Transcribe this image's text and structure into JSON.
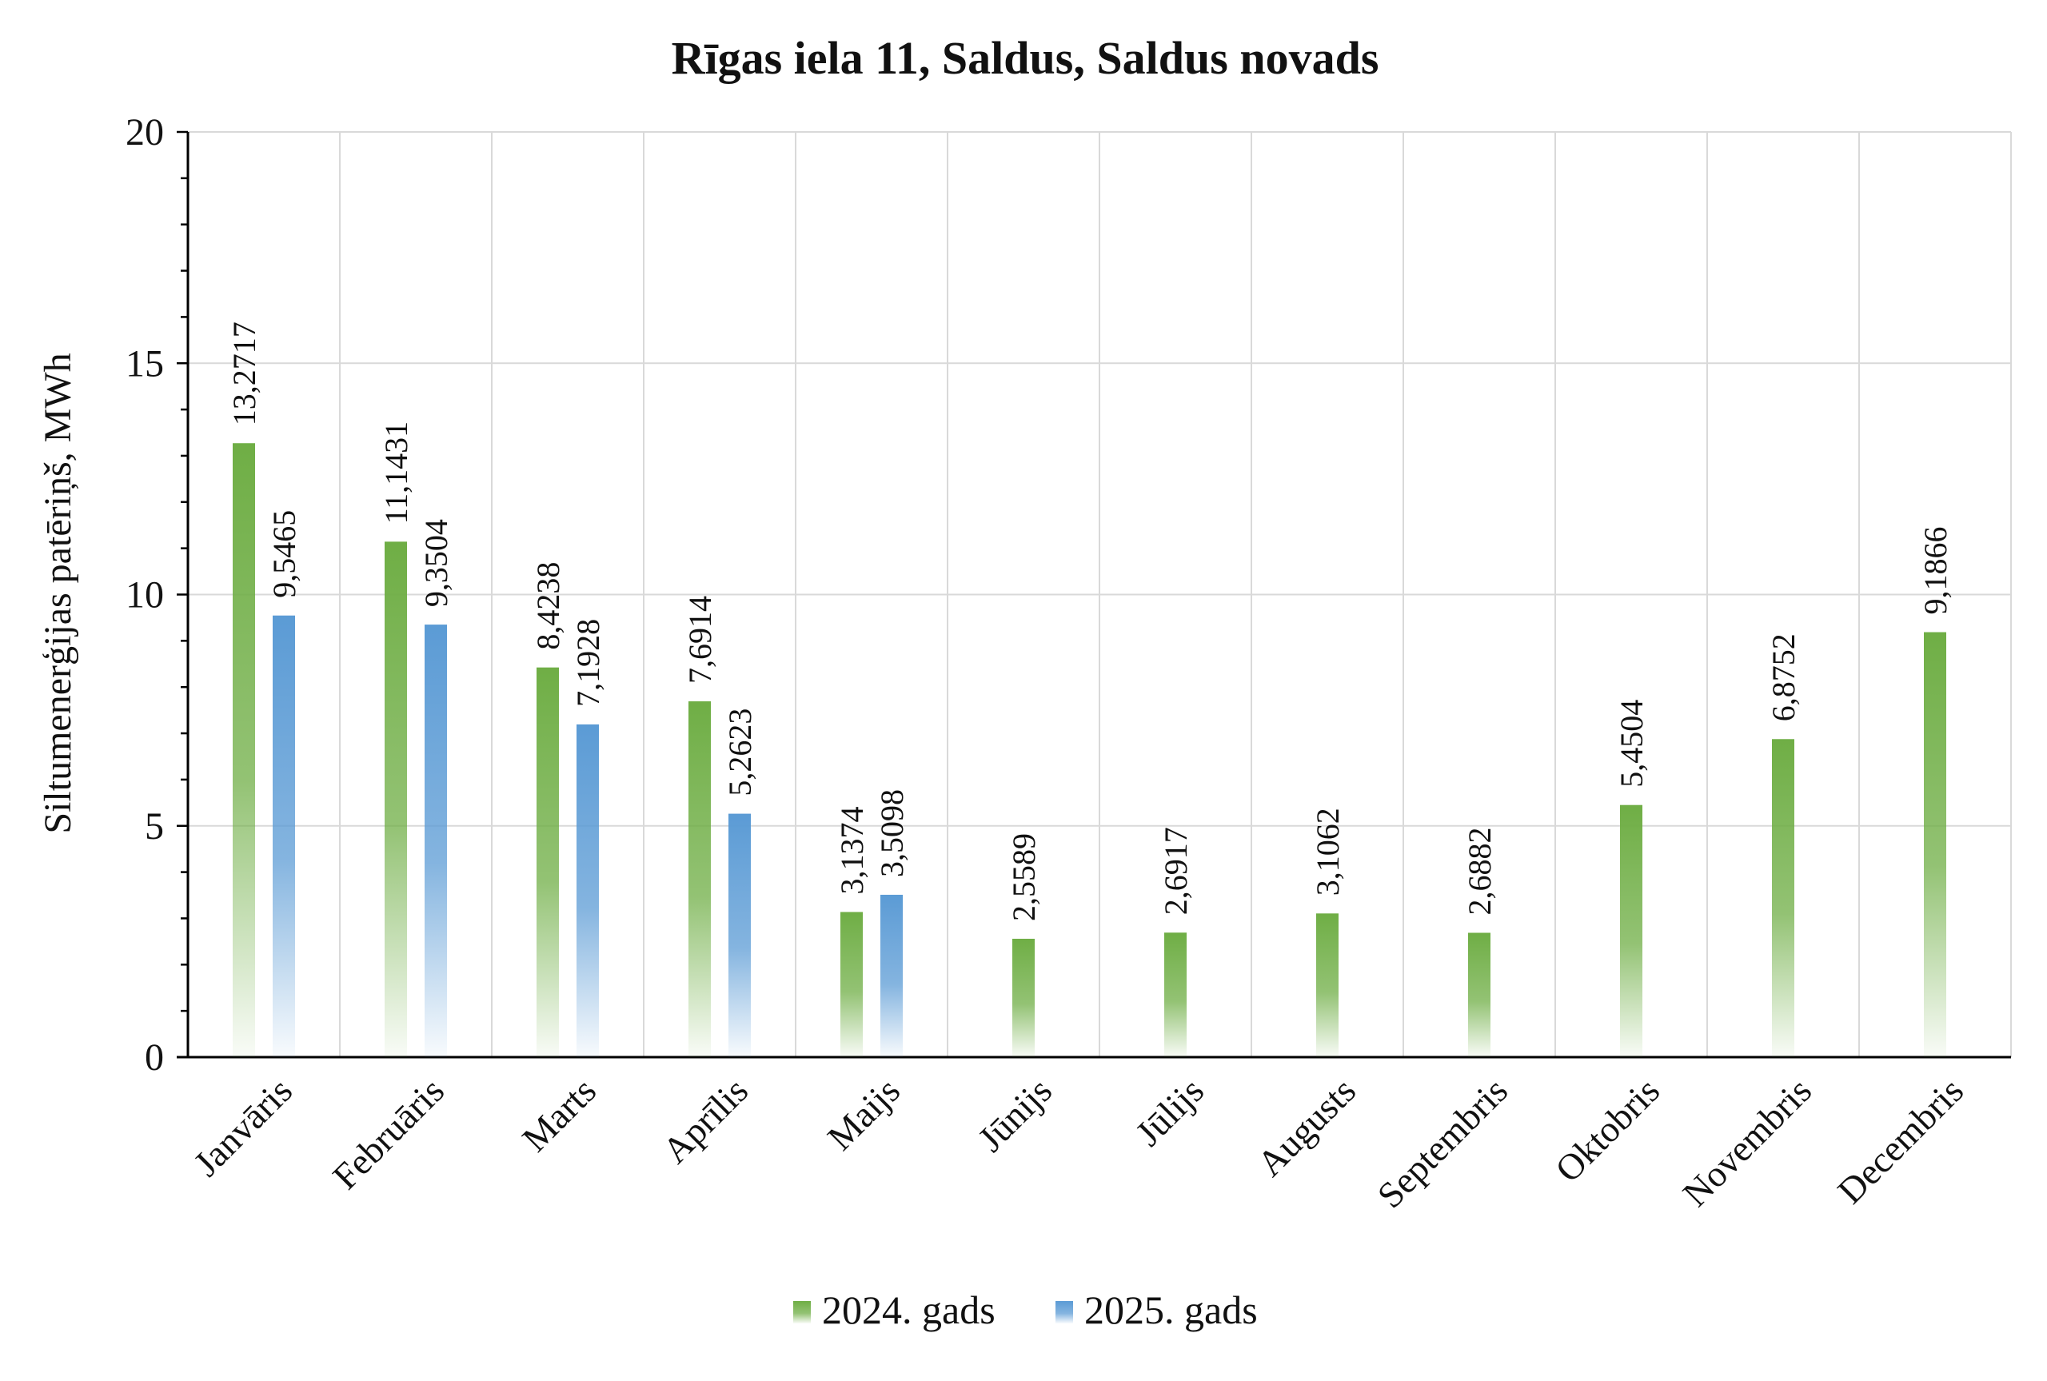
{
  "chart_data": {
    "type": "bar",
    "title": "Rīgas iela 11, Saldus, Saldus novads",
    "ylabel": "Siltumenerģijas patēriņš, MWh",
    "xlabel": "",
    "ylim": [
      0,
      20
    ],
    "yticks": [
      0,
      5,
      10,
      15,
      20
    ],
    "grid": true,
    "legend_position": "bottom",
    "categories": [
      "Janvāris",
      "Februāris",
      "Marts",
      "Aprīlis",
      "Maijs",
      "Jūnijs",
      "Jūlijs",
      "Augusts",
      "Septembris",
      "Oktobris",
      "Novembris",
      "Decembris"
    ],
    "series": [
      {
        "name": "2024. gads",
        "color": "#6fae45",
        "values": [
          13.2717,
          11.1431,
          8.4238,
          7.6914,
          3.1374,
          2.5589,
          2.6917,
          3.1062,
          2.6882,
          5.4504,
          6.8752,
          9.1866
        ],
        "labels": [
          "13,2717",
          "11,1431",
          "8,4238",
          "7,6914",
          "3,1374",
          "2,5589",
          "2,6917",
          "3,1062",
          "2,6882",
          "5,4504",
          "6,8752",
          "9,1866"
        ]
      },
      {
        "name": "2025. gads",
        "color": "#5b9bd5",
        "values": [
          9.5465,
          9.3504,
          7.1928,
          5.2623,
          3.5098,
          null,
          null,
          null,
          null,
          null,
          null,
          null
        ],
        "labels": [
          "9,5465",
          "9,3504",
          "7,1928",
          "5,2623",
          "3,5098",
          null,
          null,
          null,
          null,
          null,
          null,
          null
        ]
      }
    ]
  }
}
